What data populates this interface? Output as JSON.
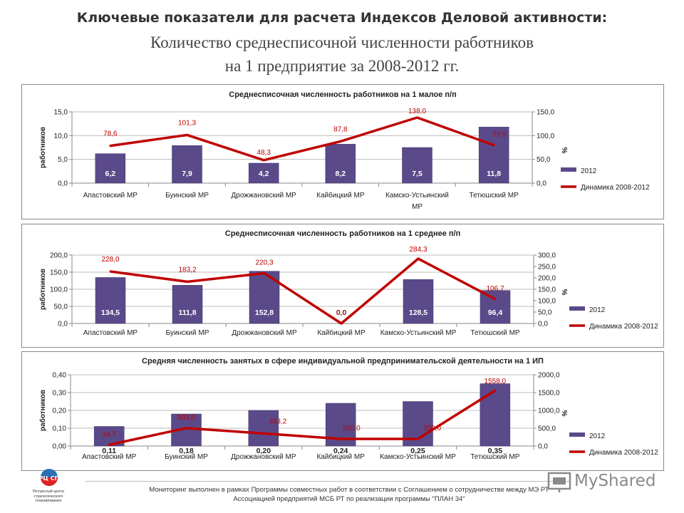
{
  "header": {
    "title_line1": "Ключевые показатели для расчета Индексов Деловой активности:",
    "title_line2": "Количество среднесписочной численности работников",
    "title_line3": "на 1 предприятие за 2008-2012 гг."
  },
  "footer": {
    "line1": "Мониторинг выполнен в рамках Программы совместных работ в соответствии с Соглашением о сотрудничестве между МЭ РТ",
    "line2": "Ассоциацией предприятий МСБ РТ по реализации программы \"ПЛАН 34\""
  },
  "logo": {
    "abbr": "РЦ СП",
    "caption": "Ресурсный центр стратегического планирования"
  },
  "watermark": {
    "text": "MyShared",
    "icon": "presentation-screen-icon"
  },
  "colors": {
    "bar": "#5b4a8a",
    "line": "#c00000",
    "label_red": "#c00000",
    "bar_label": "#ffffff"
  },
  "chart_data": [
    {
      "type": "bar+line",
      "title": "Среднесписочная численность работников на 1 малое п/п",
      "ylabel": "работников",
      "y2label": "%",
      "categories": [
        "Апастовский МР",
        "Буинский МР",
        "Дрожжановский МР",
        "Кайбицкий МР",
        "Камско-Устьинский МР",
        "Тетюшский МР"
      ],
      "ylim": [
        0,
        15
      ],
      "yticks": [
        "0,0",
        "5,0",
        "10,0",
        "15,0"
      ],
      "y2lim": [
        0,
        150
      ],
      "y2ticks": [
        "0,0",
        "50,0",
        "100,0",
        "150,0"
      ],
      "series": [
        {
          "name": "2012",
          "kind": "bar",
          "values": [
            6.2,
            7.9,
            4.2,
            8.2,
            7.5,
            11.8
          ],
          "labels": [
            "6,2",
            "7,9",
            "4,2",
            "8,2",
            "7,5",
            "11,8"
          ]
        },
        {
          "name": "Динамика 2008-2012",
          "kind": "line",
          "axis": "right",
          "values": [
            78.6,
            101.3,
            48.3,
            87.8,
            138.0,
            79.9
          ],
          "labels": [
            "78,6",
            "101,3",
            "48,3",
            "87,8",
            "138,0",
            "79,9"
          ]
        }
      ],
      "legend": "right"
    },
    {
      "type": "bar+line",
      "title": "Среднесписочная  численность работников  на 1 среднее  п/п",
      "ylabel": "работников",
      "y2label": "%",
      "categories": [
        "Апастовский МР",
        "Буинский МР",
        "Дрожжановский МР",
        "Кайбицкий МР",
        "Камско-Устьинский МР",
        "Тетюшский МР"
      ],
      "ylim": [
        0,
        200
      ],
      "yticks": [
        "0,0",
        "50,0",
        "100,0",
        "150,0",
        "200,0"
      ],
      "y2lim": [
        0,
        300
      ],
      "y2ticks": [
        "0,0",
        "50,0",
        "100,0",
        "150,0",
        "200,0",
        "250,0",
        "300,0"
      ],
      "series": [
        {
          "name": "2012",
          "kind": "bar",
          "values": [
            134.5,
            111.8,
            152.8,
            0.0,
            128.5,
            96.4
          ],
          "labels": [
            "134,5",
            "111,8",
            "152,8",
            "0,0",
            "128,5",
            "96,4"
          ]
        },
        {
          "name": "Динамика 2008-2012",
          "kind": "line",
          "axis": "right",
          "values": [
            228.0,
            183.2,
            220.3,
            0.0,
            284.3,
            106.7
          ],
          "labels": [
            "228,0",
            "183,2",
            "220,3",
            "0,0",
            "284,3",
            "106,7"
          ]
        }
      ],
      "legend": "right"
    },
    {
      "type": "bar+line",
      "title": "Средняя  численность  занятых  в сфере  индивидуальной  предпринимательской  деятельности  на 1 ИП",
      "ylabel": "работников",
      "y2label": "%",
      "categories": [
        "Апастовский МР",
        "Буинский МР",
        "Дрожжановский МР",
        "Кайбицкий МР",
        "Камско-Устьинский МР",
        "Тетюшский МР"
      ],
      "ylim": [
        0,
        0.4
      ],
      "yticks": [
        "0,00",
        "0,10",
        "0,20",
        "0,30",
        "0,40"
      ],
      "y2lim": [
        0,
        2000
      ],
      "y2ticks": [
        "0,0",
        "500,0",
        "1000,0",
        "1500,0",
        "2000,0"
      ],
      "series": [
        {
          "name": "2012",
          "kind": "bar",
          "values": [
            0.11,
            0.18,
            0.2,
            0.24,
            0.25,
            0.35
          ],
          "labels": [
            "0,11",
            "0,18",
            "0,20",
            "0,24",
            "0,25",
            "0,35"
          ]
        },
        {
          "name": "Динамика 2008-2012",
          "kind": "line",
          "axis": "right",
          "values": [
            34.7,
            503.0,
            353.2,
            200.0,
            200.0,
            1558.0
          ],
          "labels": [
            "34,7",
            "503,0",
            "353,2",
            "200,0",
            "200,0",
            "1558,0"
          ]
        }
      ],
      "legend": "right"
    }
  ]
}
